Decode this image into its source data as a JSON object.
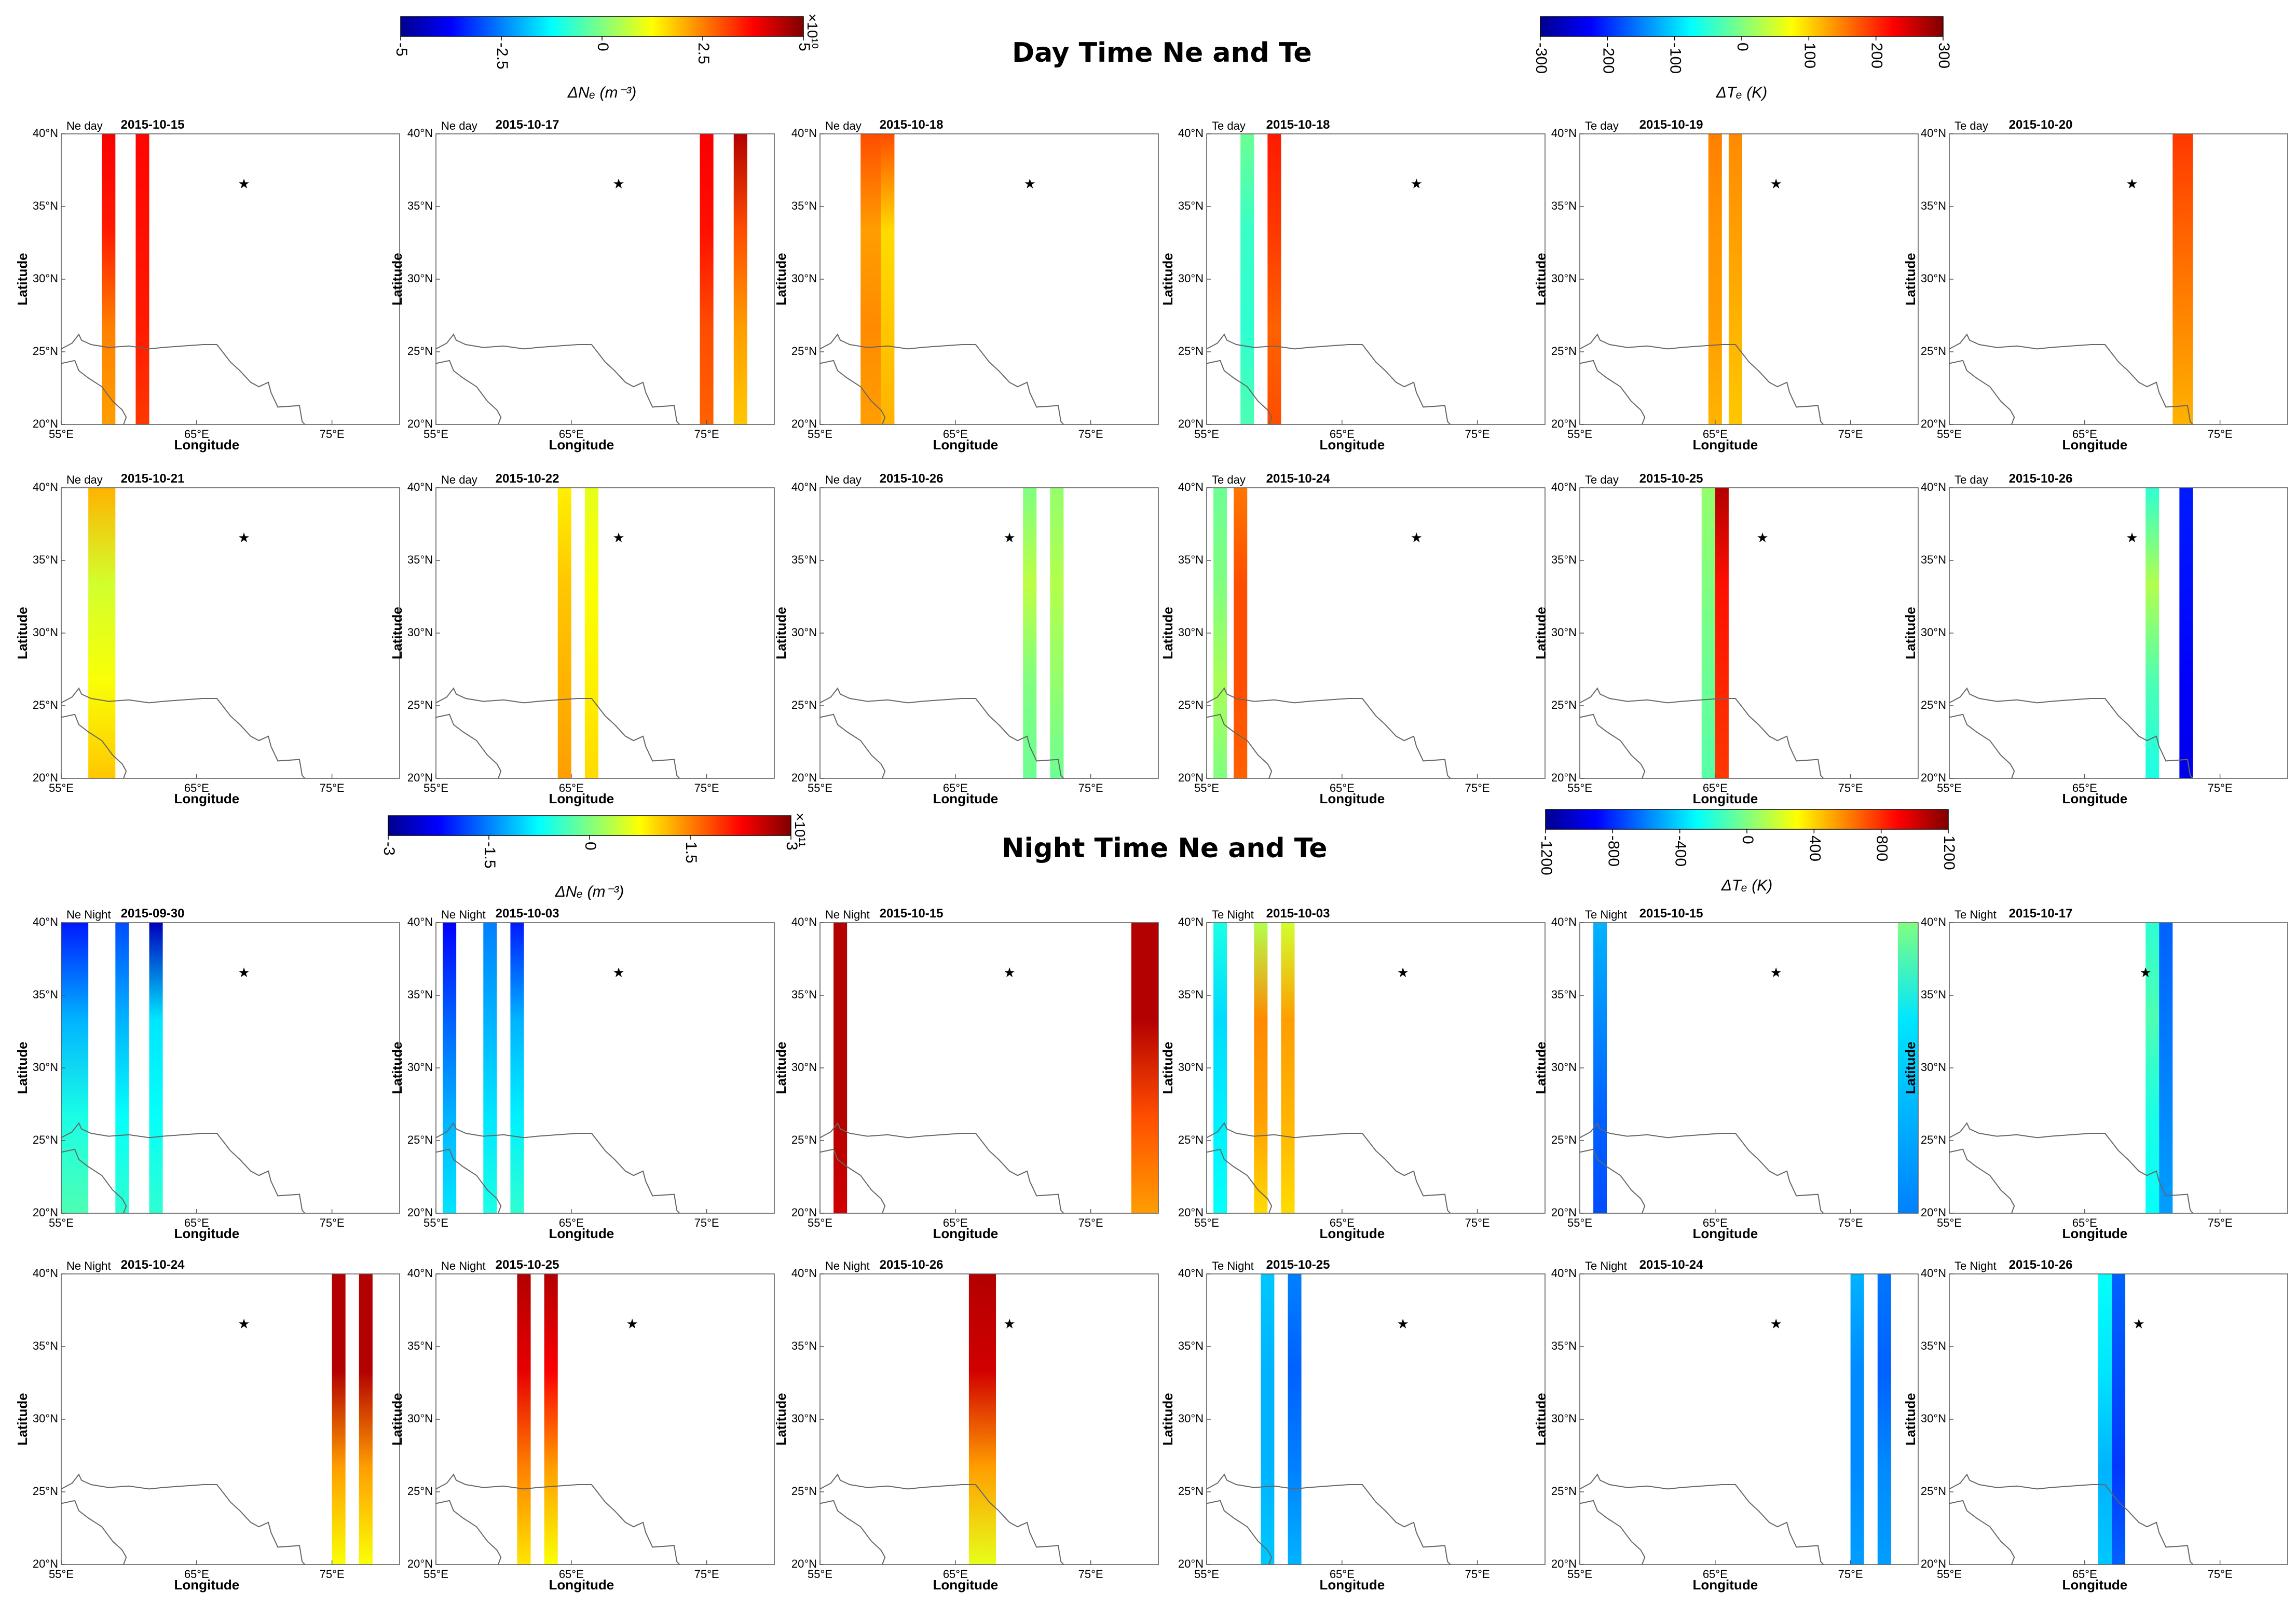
{
  "figure": {
    "day_title": "Day Time Ne and Te",
    "night_title": "Night Time Ne and Te",
    "axis": {
      "xlabel": "Longitude",
      "ylabel": "Latitude",
      "xticks": [
        "55°E",
        "65°E",
        "75°E"
      ],
      "yticks": [
        "40°N",
        "35°N",
        "30°N",
        "25°N",
        "20°N"
      ],
      "xlim": [
        55,
        80
      ],
      "ylim": [
        20,
        40
      ]
    },
    "colorbars": [
      {
        "id": "cb-ne-day",
        "label": "ΔNₑ (m⁻³)",
        "ticks": [
          "-5",
          "-2.5",
          "0",
          "2.5",
          "5"
        ],
        "exponent": "×10¹⁰",
        "range": [
          -5,
          5
        ]
      },
      {
        "id": "cb-te-day",
        "label": "ΔTₑ (K)",
        "ticks": [
          "-300",
          "-200",
          "-100",
          "0",
          "100",
          "200",
          "300"
        ],
        "exponent": "",
        "range": [
          -300,
          300
        ]
      },
      {
        "id": "cb-ne-night",
        "label": "ΔNₑ (m⁻³)",
        "ticks": [
          "-3",
          "-1.5",
          "0",
          "1.5",
          "3"
        ],
        "exponent": "×10¹¹",
        "range": [
          -3,
          3
        ]
      },
      {
        "id": "cb-te-night",
        "label": "ΔTₑ (K)",
        "ticks": [
          "-1200",
          "-800",
          "-400",
          "0",
          "400",
          "800",
          "1200"
        ],
        "exponent": "",
        "range": [
          -1200,
          1200
        ]
      }
    ],
    "colormap": [
      "#00008f",
      "#0000ff",
      "#0080ff",
      "#00ffff",
      "#80ff80",
      "#ffff00",
      "#ff8000",
      "#ff0000",
      "#800000"
    ]
  },
  "chart_data": {
    "type": "heatmap",
    "description_units": "longitude (°E), latitude (°N), value as fraction of colorbar range",
    "panels": [
      {
        "corner": "Ne day",
        "date": "2015-10-15",
        "star": [
          68.5,
          36.5
        ],
        "strips": [
          {
            "lon": [
              58,
              59
            ],
            "vals": [
              0.72,
              0.75,
              0.85,
              0.88
            ]
          },
          {
            "lon": [
              60.5,
              61.5
            ],
            "vals": [
              0.82,
              0.85,
              0.86,
              0.87
            ]
          }
        ]
      },
      {
        "corner": "Ne day",
        "date": "2015-10-17",
        "star": [
          68.5,
          36.5
        ],
        "strips": [
          {
            "lon": [
              74.5,
              75.5
            ],
            "vals": [
              0.78,
              0.8,
              0.86,
              0.88
            ]
          },
          {
            "lon": [
              77,
              78
            ],
            "vals": [
              0.68,
              0.72,
              0.8,
              0.95
            ]
          }
        ]
      },
      {
        "corner": "Ne day",
        "date": "2015-10-18",
        "star": [
          70.5,
          36.5
        ],
        "strips": [
          {
            "lon": [
              58,
              59.5
            ],
            "vals": [
              0.72,
              0.74,
              0.72,
              0.8
            ]
          },
          {
            "lon": [
              59.5,
              60.5
            ],
            "vals": [
              0.7,
              0.68,
              0.66,
              0.8
            ]
          }
        ]
      },
      {
        "corner": "Te day",
        "date": "2015-10-18",
        "star": [
          70.5,
          36.5
        ],
        "strips": [
          {
            "lon": [
              57.5,
              58.5
            ],
            "vals": [
              0.45,
              0.42,
              0.43,
              0.48
            ]
          },
          {
            "lon": [
              59.5,
              60.5
            ],
            "vals": [
              0.8,
              0.78,
              0.82,
              0.85
            ]
          }
        ]
      },
      {
        "corner": "Te day",
        "date": "2015-10-19",
        "star": [
          69.5,
          36.5
        ],
        "strips": [
          {
            "lon": [
              64.5,
              65.5
            ],
            "vals": [
              0.7,
              0.72,
              0.73,
              0.75
            ]
          },
          {
            "lon": [
              66,
              67
            ],
            "vals": [
              0.68,
              0.7,
              0.72,
              0.74
            ]
          }
        ]
      },
      {
        "corner": "Te day",
        "date": "2015-10-20",
        "star": [
          68.5,
          36.5
        ],
        "strips": [
          {
            "lon": [
              71.5,
              73
            ],
            "vals": [
              0.7,
              0.74,
              0.78,
              0.82
            ]
          }
        ]
      },
      {
        "corner": "Ne day",
        "date": "2015-10-21",
        "star": [
          68.5,
          36.5
        ],
        "strips": [
          {
            "lon": [
              57,
              59
            ],
            "vals": [
              0.68,
              0.62,
              0.58,
              0.7
            ]
          }
        ]
      },
      {
        "corner": "Ne day",
        "date": "2015-10-22",
        "star": [
          68.5,
          36.5
        ],
        "strips": [
          {
            "lon": [
              64,
              65
            ],
            "vals": [
              0.72,
              0.7,
              0.68,
              0.64
            ]
          },
          {
            "lon": [
              66,
              67
            ],
            "vals": [
              0.66,
              0.64,
              0.62,
              0.6
            ]
          }
        ]
      },
      {
        "corner": "Ne day",
        "date": "2015-10-26",
        "star": [
          69,
          36.5
        ],
        "strips": [
          {
            "lon": [
              70,
              71
            ],
            "vals": [
              0.48,
              0.5,
              0.56,
              0.5
            ]
          },
          {
            "lon": [
              72,
              73
            ],
            "vals": [
              0.48,
              0.52,
              0.55,
              0.52
            ]
          }
        ]
      },
      {
        "corner": "Te day",
        "date": "2015-10-24",
        "star": [
          70.5,
          36.5
        ],
        "strips": [
          {
            "lon": [
              55.5,
              56.5
            ],
            "vals": [
              0.5,
              0.54,
              0.5,
              0.48
            ]
          },
          {
            "lon": [
              57,
              58
            ],
            "vals": [
              0.78,
              0.8,
              0.8,
              0.76
            ]
          }
        ]
      },
      {
        "corner": "Te day",
        "date": "2015-10-25",
        "star": [
          68.5,
          36.5
        ],
        "strips": [
          {
            "lon": [
              64,
              65
            ],
            "vals": [
              0.46,
              0.48,
              0.5,
              0.52
            ]
          },
          {
            "lon": [
              65,
              66
            ],
            "vals": [
              0.82,
              0.84,
              0.86,
              0.95
            ]
          }
        ]
      },
      {
        "corner": "Te day",
        "date": "2015-10-26",
        "star": [
          68.5,
          36.5
        ],
        "strips": [
          {
            "lon": [
              69.5,
              70.5
            ],
            "vals": [
              0.4,
              0.45,
              0.55,
              0.42
            ]
          },
          {
            "lon": [
              72,
              73
            ],
            "vals": [
              0.1,
              0.12,
              0.14,
              0.15
            ]
          }
        ]
      },
      {
        "corner": "Ne Night",
        "date": "2015-09-30",
        "star": [
          68.5,
          36.5
        ],
        "strips": [
          {
            "lon": [
              55,
              57
            ],
            "vals": [
              0.45,
              0.4,
              0.3,
              0.15
            ]
          },
          {
            "lon": [
              59,
              60
            ],
            "vals": [
              0.42,
              0.38,
              0.3,
              0.2
            ]
          },
          {
            "lon": [
              61.5,
              62.5
            ],
            "vals": [
              0.42,
              0.38,
              0.35,
              0.05
            ]
          }
        ]
      },
      {
        "corner": "Ne Night",
        "date": "2015-10-03",
        "star": [
          68.5,
          36.5
        ],
        "strips": [
          {
            "lon": [
              55.5,
              56.5
            ],
            "vals": [
              0.35,
              0.3,
              0.22,
              0.12
            ]
          },
          {
            "lon": [
              58.5,
              59.5
            ],
            "vals": [
              0.4,
              0.35,
              0.3,
              0.25
            ]
          },
          {
            "lon": [
              60.5,
              61.5
            ],
            "vals": [
              0.42,
              0.36,
              0.3,
              0.15
            ]
          }
        ]
      },
      {
        "corner": "Ne Night",
        "date": "2015-10-15",
        "star": [
          69,
          36.5
        ],
        "strips": [
          {
            "lon": [
              56,
              57
            ],
            "vals": [
              0.92,
              0.95,
              0.95,
              0.95
            ]
          },
          {
            "lon": [
              78,
              80
            ],
            "vals": [
              0.72,
              0.8,
              0.95,
              0.95
            ]
          }
        ]
      },
      {
        "corner": "Te Night",
        "date": "2015-10-03",
        "star": [
          69.5,
          36.5
        ],
        "strips": [
          {
            "lon": [
              55.5,
              56.5
            ],
            "vals": [
              0.38,
              0.36,
              0.34,
              0.4
            ]
          },
          {
            "lon": [
              58.5,
              59.5
            ],
            "vals": [
              0.66,
              0.72,
              0.74,
              0.55
            ]
          },
          {
            "lon": [
              60.5,
              61.5
            ],
            "vals": [
              0.66,
              0.7,
              0.72,
              0.58
            ]
          }
        ]
      },
      {
        "corner": "Te Night",
        "date": "2015-10-15",
        "star": [
          69.5,
          36.5
        ],
        "strips": [
          {
            "lon": [
              56,
              57
            ],
            "vals": [
              0.2,
              0.22,
              0.26,
              0.3
            ]
          },
          {
            "lon": [
              78.5,
              80
            ],
            "vals": [
              0.25,
              0.3,
              0.35,
              0.5
            ]
          }
        ]
      },
      {
        "corner": "Te Night",
        "date": "2015-10-17",
        "star": [
          69.5,
          36.5
        ],
        "strips": [
          {
            "lon": [
              69.5,
              70.5
            ],
            "vals": [
              0.38,
              0.4,
              0.45,
              0.42
            ]
          },
          {
            "lon": [
              70.5,
              71.5
            ],
            "vals": [
              0.28,
              0.26,
              0.24,
              0.22
            ]
          }
        ]
      },
      {
        "corner": "Ne Night",
        "date": "2015-10-24",
        "star": [
          68.5,
          36.5
        ],
        "strips": [
          {
            "lon": [
              75,
              76
            ],
            "vals": [
              0.62,
              0.72,
              0.95,
              0.95
            ]
          },
          {
            "lon": [
              77,
              78
            ],
            "vals": [
              0.62,
              0.72,
              0.95,
              0.95
            ]
          }
        ]
      },
      {
        "corner": "Ne Night",
        "date": "2015-10-25",
        "star": [
          69.5,
          36.5
        ],
        "strips": [
          {
            "lon": [
              61,
              62
            ],
            "vals": [
              0.65,
              0.75,
              0.9,
              0.95
            ]
          },
          {
            "lon": [
              63,
              64
            ],
            "vals": [
              0.62,
              0.72,
              0.88,
              0.95
            ]
          }
        ]
      },
      {
        "corner": "Ne Night",
        "date": "2015-10-26",
        "star": [
          69,
          36.5
        ],
        "strips": [
          {
            "lon": [
              66,
              68
            ],
            "vals": [
              0.6,
              0.72,
              0.92,
              0.95
            ]
          }
        ]
      },
      {
        "corner": "Te Night",
        "date": "2015-10-25",
        "star": [
          69.5,
          36.5
        ],
        "strips": [
          {
            "lon": [
              59,
              60
            ],
            "vals": [
              0.32,
              0.3,
              0.3,
              0.32
            ]
          },
          {
            "lon": [
              61,
              62
            ],
            "vals": [
              0.3,
              0.25,
              0.22,
              0.25
            ]
          }
        ]
      },
      {
        "corner": "Te Night",
        "date": "2015-10-24",
        "star": [
          69.5,
          36.5
        ],
        "strips": [
          {
            "lon": [
              75,
              76
            ],
            "vals": [
              0.28,
              0.26,
              0.26,
              0.3
            ]
          },
          {
            "lon": [
              77,
              78
            ],
            "vals": [
              0.28,
              0.26,
              0.22,
              0.24
            ]
          }
        ]
      },
      {
        "corner": "Te Night",
        "date": "2015-10-26",
        "star": [
          69,
          36.5
        ],
        "strips": [
          {
            "lon": [
              66,
              67
            ],
            "vals": [
              0.32,
              0.3,
              0.35,
              0.38
            ]
          },
          {
            "lon": [
              67,
              68
            ],
            "vals": [
              0.22,
              0.18,
              0.2,
              0.22
            ]
          }
        ]
      }
    ]
  }
}
